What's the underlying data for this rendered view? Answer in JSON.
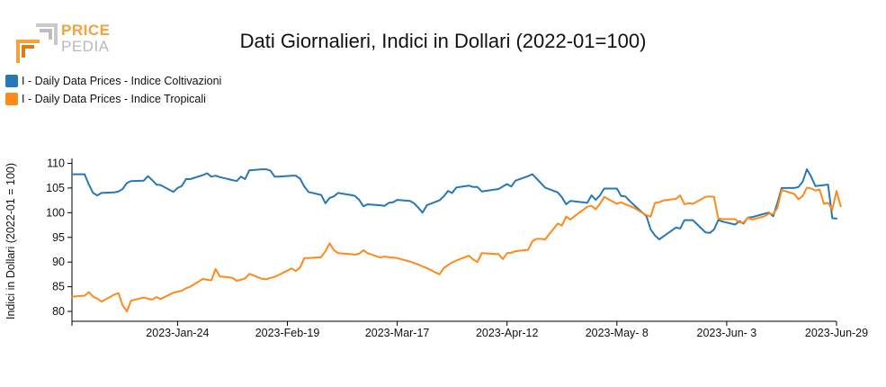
{
  "logo": {
    "line1": "PRICE",
    "line2": "PEDIA"
  },
  "colors": {
    "coltivazioni": "#2878b5",
    "tropicali": "#ff8a1c",
    "logo_orange": "#f4a23a",
    "logo_grey": "#b9b9b9"
  },
  "chart_data": {
    "type": "line",
    "title": "Dati Giornalieri, Indici in Dollari (2022-01=100)",
    "xlabel": "",
    "ylabel": "Indici in Dollari (2022-01 = 100)",
    "xlim": [
      "2022-12-30",
      "2023-06-29"
    ],
    "ylim": [
      78,
      111
    ],
    "yticks": [
      80,
      85,
      90,
      95,
      100,
      105,
      110
    ],
    "xticks": [
      {
        "date": "2023-01-24",
        "label": "2023-Jan-24"
      },
      {
        "date": "2023-02-19",
        "label": "2023-Feb-19"
      },
      {
        "date": "2023-03-17",
        "label": "2023-Mar-17"
      },
      {
        "date": "2023-04-12",
        "label": "2023-Apr-12"
      },
      {
        "date": "2023-05-08",
        "label": "2023-May- 8"
      },
      {
        "date": "2023-06-03",
        "label": "2023-Jun- 3"
      },
      {
        "date": "2023-06-29",
        "label": "2023-Jun-29"
      }
    ],
    "legend_position": "top-left",
    "grid": false,
    "series": [
      {
        "name": "I - Daily Data Prices - Indice Coltivazioni",
        "color": "#2878b5",
        "points": [
          [
            "2022-12-30",
            107.8
          ],
          [
            "2023-01-02",
            107.8
          ],
          [
            "2023-01-03",
            105.7
          ],
          [
            "2023-01-04",
            104.0
          ],
          [
            "2023-01-05",
            103.5
          ],
          [
            "2023-01-06",
            104.0
          ],
          [
            "2023-01-09",
            104.1
          ],
          [
            "2023-01-10",
            104.3
          ],
          [
            "2023-01-11",
            104.8
          ],
          [
            "2023-01-12",
            106.0
          ],
          [
            "2023-01-13",
            106.4
          ],
          [
            "2023-01-16",
            106.5
          ],
          [
            "2023-01-17",
            107.4
          ],
          [
            "2023-01-18",
            106.6
          ],
          [
            "2023-01-19",
            105.7
          ],
          [
            "2023-01-20",
            105.6
          ],
          [
            "2023-01-23",
            104.2
          ],
          [
            "2023-01-24",
            105.0
          ],
          [
            "2023-01-25",
            105.4
          ],
          [
            "2023-01-26",
            106.8
          ],
          [
            "2023-01-27",
            106.8
          ],
          [
            "2023-01-30",
            107.6
          ],
          [
            "2023-01-31",
            108.0
          ],
          [
            "2023-02-01",
            107.3
          ],
          [
            "2023-02-02",
            107.5
          ],
          [
            "2023-02-03",
            107.2
          ],
          [
            "2023-02-06",
            106.6
          ],
          [
            "2023-02-07",
            106.4
          ],
          [
            "2023-02-08",
            107.3
          ],
          [
            "2023-02-09",
            106.8
          ],
          [
            "2023-02-10",
            108.6
          ],
          [
            "2023-02-13",
            108.8
          ],
          [
            "2023-02-14",
            108.8
          ],
          [
            "2023-02-15",
            108.5
          ],
          [
            "2023-02-16",
            107.3
          ],
          [
            "2023-02-17",
            107.3
          ],
          [
            "2023-02-20",
            107.5
          ],
          [
            "2023-02-21",
            107.5
          ],
          [
            "2023-02-22",
            106.9
          ],
          [
            "2023-02-23",
            105.3
          ],
          [
            "2023-02-24",
            104.2
          ],
          [
            "2023-02-27",
            103.6
          ],
          [
            "2023-02-28",
            101.9
          ],
          [
            "2023-03-01",
            103.0
          ],
          [
            "2023-03-02",
            103.3
          ],
          [
            "2023-03-03",
            104.0
          ],
          [
            "2023-03-06",
            103.6
          ],
          [
            "2023-03-07",
            103.4
          ],
          [
            "2023-03-08",
            102.6
          ],
          [
            "2023-03-09",
            101.3
          ],
          [
            "2023-03-10",
            101.7
          ],
          [
            "2023-03-13",
            101.5
          ],
          [
            "2023-03-14",
            101.4
          ],
          [
            "2023-03-15",
            102.0
          ],
          [
            "2023-03-16",
            102.1
          ],
          [
            "2023-03-17",
            102.6
          ],
          [
            "2023-03-20",
            102.4
          ],
          [
            "2023-03-21",
            101.9
          ],
          [
            "2023-03-22",
            101.0
          ],
          [
            "2023-03-23",
            100.0
          ],
          [
            "2023-03-24",
            101.5
          ],
          [
            "2023-03-27",
            102.5
          ],
          [
            "2023-03-28",
            103.3
          ],
          [
            "2023-03-29",
            104.4
          ],
          [
            "2023-03-30",
            104.0
          ],
          [
            "2023-03-31",
            105.1
          ],
          [
            "2023-04-03",
            105.5
          ],
          [
            "2023-04-04",
            105.2
          ],
          [
            "2023-04-05",
            105.2
          ],
          [
            "2023-04-06",
            104.3
          ],
          [
            "2023-04-10",
            104.8
          ],
          [
            "2023-04-11",
            105.3
          ],
          [
            "2023-04-12",
            105.8
          ],
          [
            "2023-04-13",
            105.3
          ],
          [
            "2023-04-14",
            106.5
          ],
          [
            "2023-04-17",
            107.4
          ],
          [
            "2023-04-18",
            107.8
          ],
          [
            "2023-04-19",
            106.9
          ],
          [
            "2023-04-20",
            106.0
          ],
          [
            "2023-04-21",
            105.1
          ],
          [
            "2023-04-24",
            104.1
          ],
          [
            "2023-04-25",
            103.1
          ],
          [
            "2023-04-26",
            101.7
          ],
          [
            "2023-04-27",
            102.4
          ],
          [
            "2023-04-28",
            102.3
          ],
          [
            "2023-05-01",
            102.0
          ],
          [
            "2023-05-02",
            103.5
          ],
          [
            "2023-05-03",
            102.6
          ],
          [
            "2023-05-04",
            103.5
          ],
          [
            "2023-05-05",
            104.9
          ],
          [
            "2023-05-08",
            104.9
          ],
          [
            "2023-05-09",
            103.4
          ],
          [
            "2023-05-10",
            103.3
          ],
          [
            "2023-05-11",
            102.4
          ],
          [
            "2023-05-12",
            101.6
          ],
          [
            "2023-05-15",
            99.3
          ],
          [
            "2023-05-16",
            96.6
          ],
          [
            "2023-05-17",
            95.4
          ],
          [
            "2023-05-18",
            94.6
          ],
          [
            "2023-05-19",
            95.2
          ],
          [
            "2023-05-22",
            97.0
          ],
          [
            "2023-05-23",
            96.8
          ],
          [
            "2023-05-24",
            98.5
          ],
          [
            "2023-05-25",
            98.5
          ],
          [
            "2023-05-26",
            98.5
          ],
          [
            "2023-05-29",
            96.0
          ],
          [
            "2023-05-30",
            95.9
          ],
          [
            "2023-05-31",
            96.6
          ],
          [
            "2023-06-01",
            98.5
          ],
          [
            "2023-06-02",
            98.2
          ],
          [
            "2023-06-05",
            97.6
          ],
          [
            "2023-06-06",
            98.3
          ],
          [
            "2023-06-07",
            97.8
          ],
          [
            "2023-06-08",
            99.0
          ],
          [
            "2023-06-09",
            99.1
          ],
          [
            "2023-06-12",
            99.8
          ],
          [
            "2023-06-13",
            100.0
          ],
          [
            "2023-06-14",
            99.3
          ],
          [
            "2023-06-15",
            102.0
          ],
          [
            "2023-06-16",
            105.0
          ],
          [
            "2023-06-19",
            105.0
          ],
          [
            "2023-06-20",
            105.2
          ],
          [
            "2023-06-21",
            106.3
          ],
          [
            "2023-06-22",
            108.8
          ],
          [
            "2023-06-23",
            107.3
          ],
          [
            "2023-06-24",
            105.4
          ],
          [
            "2023-06-27",
            105.7
          ],
          [
            "2023-06-28",
            98.9
          ],
          [
            "2023-06-29",
            98.8
          ]
        ]
      },
      {
        "name": "I - Daily Data Prices - Indice Tropicali",
        "color": "#ff8a1c",
        "points": [
          [
            "2022-12-30",
            83.0
          ],
          [
            "2023-01-02",
            83.2
          ],
          [
            "2023-01-03",
            83.9
          ],
          [
            "2023-01-04",
            83.0
          ],
          [
            "2023-01-05",
            82.6
          ],
          [
            "2023-01-06",
            82.0
          ],
          [
            "2023-01-09",
            83.4
          ],
          [
            "2023-01-10",
            83.7
          ],
          [
            "2023-01-11",
            81.2
          ],
          [
            "2023-01-12",
            80.0
          ],
          [
            "2023-01-13",
            82.2
          ],
          [
            "2023-01-16",
            82.8
          ],
          [
            "2023-01-17",
            82.6
          ],
          [
            "2023-01-18",
            82.4
          ],
          [
            "2023-01-19",
            82.9
          ],
          [
            "2023-01-20",
            82.5
          ],
          [
            "2023-01-23",
            83.8
          ],
          [
            "2023-01-24",
            84.0
          ],
          [
            "2023-01-25",
            84.2
          ],
          [
            "2023-01-26",
            84.7
          ],
          [
            "2023-01-27",
            85.0
          ],
          [
            "2023-01-30",
            86.6
          ],
          [
            "2023-01-31",
            86.4
          ],
          [
            "2023-02-01",
            86.3
          ],
          [
            "2023-02-02",
            88.6
          ],
          [
            "2023-02-03",
            87.1
          ],
          [
            "2023-02-06",
            86.8
          ],
          [
            "2023-02-07",
            86.2
          ],
          [
            "2023-02-08",
            86.4
          ],
          [
            "2023-02-09",
            86.7
          ],
          [
            "2023-02-10",
            87.6
          ],
          [
            "2023-02-13",
            86.6
          ],
          [
            "2023-02-14",
            86.5
          ],
          [
            "2023-02-15",
            86.8
          ],
          [
            "2023-02-16",
            87.0
          ],
          [
            "2023-02-17",
            87.4
          ],
          [
            "2023-02-20",
            88.7
          ],
          [
            "2023-02-21",
            88.2
          ],
          [
            "2023-02-22",
            88.9
          ],
          [
            "2023-02-23",
            90.8
          ],
          [
            "2023-02-24",
            90.8
          ],
          [
            "2023-02-27",
            91.0
          ],
          [
            "2023-02-28",
            92.2
          ],
          [
            "2023-03-01",
            93.8
          ],
          [
            "2023-03-02",
            92.4
          ],
          [
            "2023-03-03",
            91.8
          ],
          [
            "2023-03-06",
            91.6
          ],
          [
            "2023-03-07",
            91.5
          ],
          [
            "2023-03-08",
            91.7
          ],
          [
            "2023-03-09",
            92.4
          ],
          [
            "2023-03-10",
            91.8
          ],
          [
            "2023-03-13",
            90.9
          ],
          [
            "2023-03-14",
            91.1
          ],
          [
            "2023-03-15",
            91.0
          ],
          [
            "2023-03-16",
            90.9
          ],
          [
            "2023-03-17",
            90.8
          ],
          [
            "2023-03-20",
            90.1
          ],
          [
            "2023-03-21",
            89.8
          ],
          [
            "2023-03-22",
            89.5
          ],
          [
            "2023-03-23",
            89.1
          ],
          [
            "2023-03-24",
            88.8
          ],
          [
            "2023-03-27",
            87.5
          ],
          [
            "2023-03-28",
            88.8
          ],
          [
            "2023-03-29",
            89.4
          ],
          [
            "2023-03-30",
            89.9
          ],
          [
            "2023-03-31",
            90.3
          ],
          [
            "2023-04-03",
            91.3
          ],
          [
            "2023-04-04",
            90.5
          ],
          [
            "2023-04-05",
            90.0
          ],
          [
            "2023-04-06",
            91.8
          ],
          [
            "2023-04-10",
            91.6
          ],
          [
            "2023-04-11",
            90.6
          ],
          [
            "2023-04-12",
            91.8
          ],
          [
            "2023-04-13",
            91.9
          ],
          [
            "2023-04-14",
            92.2
          ],
          [
            "2023-04-17",
            92.5
          ],
          [
            "2023-04-18",
            94.2
          ],
          [
            "2023-04-19",
            94.7
          ],
          [
            "2023-04-20",
            94.7
          ],
          [
            "2023-04-21",
            94.6
          ],
          [
            "2023-04-24",
            97.8
          ],
          [
            "2023-04-25",
            97.4
          ],
          [
            "2023-04-26",
            99.2
          ],
          [
            "2023-04-27",
            98.6
          ],
          [
            "2023-04-28",
            99.3
          ],
          [
            "2023-05-01",
            101.2
          ],
          [
            "2023-05-02",
            101.4
          ],
          [
            "2023-05-03",
            100.7
          ],
          [
            "2023-05-04",
            101.8
          ],
          [
            "2023-05-05",
            103.2
          ],
          [
            "2023-05-08",
            101.8
          ],
          [
            "2023-05-09",
            102.1
          ],
          [
            "2023-05-10",
            101.7
          ],
          [
            "2023-05-11",
            101.4
          ],
          [
            "2023-05-12",
            101.0
          ],
          [
            "2023-05-15",
            99.5
          ],
          [
            "2023-05-16",
            99.2
          ],
          [
            "2023-05-17",
            102.0
          ],
          [
            "2023-05-18",
            102.1
          ],
          [
            "2023-05-19",
            102.5
          ],
          [
            "2023-05-22",
            102.8
          ],
          [
            "2023-05-23",
            103.5
          ],
          [
            "2023-05-24",
            101.7
          ],
          [
            "2023-05-25",
            101.9
          ],
          [
            "2023-05-26",
            101.8
          ],
          [
            "2023-05-29",
            103.2
          ],
          [
            "2023-05-30",
            103.3
          ],
          [
            "2023-05-31",
            103.2
          ],
          [
            "2023-06-01",
            98.8
          ],
          [
            "2023-06-02",
            98.7
          ],
          [
            "2023-06-05",
            98.7
          ],
          [
            "2023-06-06",
            98.0
          ],
          [
            "2023-06-07",
            98.0
          ],
          [
            "2023-06-08",
            99.0
          ],
          [
            "2023-06-09",
            98.6
          ],
          [
            "2023-06-12",
            99.3
          ],
          [
            "2023-06-13",
            99.8
          ],
          [
            "2023-06-14",
            99.7
          ],
          [
            "2023-06-15",
            101.0
          ],
          [
            "2023-06-16",
            104.6
          ],
          [
            "2023-06-19",
            103.8
          ],
          [
            "2023-06-20",
            102.7
          ],
          [
            "2023-06-21",
            103.4
          ],
          [
            "2023-06-22",
            105.1
          ],
          [
            "2023-06-23",
            104.9
          ],
          [
            "2023-06-24",
            104.5
          ],
          [
            "2023-06-25",
            104.7
          ],
          [
            "2023-06-26",
            101.8
          ],
          [
            "2023-06-27",
            102.0
          ],
          [
            "2023-06-28",
            100.6
          ],
          [
            "2023-06-29",
            104.4
          ],
          [
            "2023-06-30",
            101.3
          ]
        ]
      }
    ]
  }
}
